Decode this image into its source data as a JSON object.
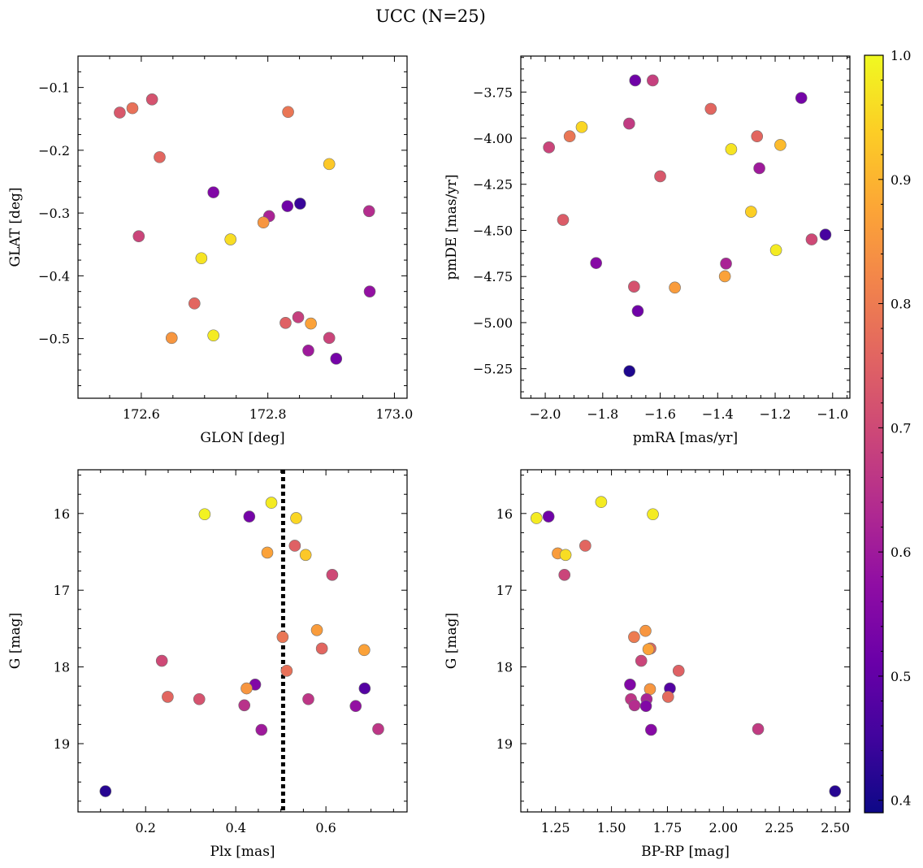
{
  "figure": {
    "title": "UCC (N=25)"
  },
  "colorbar": {
    "cmap": "plasma",
    "range": [
      0.39,
      1.0
    ],
    "ticks": [
      "0.4",
      "0.5",
      "0.6",
      "0.7",
      "0.8",
      "0.9",
      "1.0"
    ]
  },
  "chart_data": [
    {
      "type": "scatter",
      "xlabel": "GLON [deg]",
      "ylabel": "GLAT [deg]",
      "xlim": [
        172.5,
        173.02
      ],
      "ylim": [
        -0.595,
        -0.05
      ],
      "xticks": [
        "172.6",
        "172.8",
        "173.0"
      ],
      "yticks": [
        "−0.1",
        "−0.2",
        "−0.3",
        "−0.4",
        "−0.5"
      ],
      "x": [
        172.566,
        172.586,
        172.617,
        172.629,
        172.832,
        172.897,
        172.714,
        172.831,
        172.851,
        172.96,
        172.596,
        172.802,
        172.793,
        172.741,
        172.695,
        172.684,
        172.961,
        172.648,
        172.714,
        172.828,
        172.848,
        172.868,
        172.897,
        172.864,
        172.908
      ],
      "y": [
        -0.14,
        -0.133,
        -0.119,
        -0.211,
        -0.139,
        -0.222,
        -0.267,
        -0.289,
        -0.285,
        -0.297,
        -0.337,
        -0.305,
        -0.315,
        -0.342,
        -0.372,
        -0.444,
        -0.425,
        -0.499,
        -0.495,
        -0.475,
        -0.466,
        -0.476,
        -0.499,
        -0.519,
        -0.532
      ],
      "c": [
        0.73,
        0.78,
        0.72,
        0.76,
        0.79,
        0.93,
        0.55,
        0.52,
        0.44,
        0.64,
        0.69,
        0.62,
        0.85,
        0.96,
        0.97,
        0.76,
        0.58,
        0.85,
        0.98,
        0.75,
        0.68,
        0.87,
        0.69,
        0.6,
        0.53
      ]
    },
    {
      "type": "scatter",
      "xlabel": "pmRA [mas/yr]",
      "ylabel": "pmDE [mas/yr]",
      "xlim": [
        -2.085,
        -0.94
      ],
      "ylim": [
        -5.41,
        -3.555
      ],
      "xticks": [
        "−2.0",
        "−1.8",
        "−1.6",
        "−1.4",
        "−1.2",
        "−1.0"
      ],
      "yticks": [
        "−3.75",
        "−4.00",
        "−4.25",
        "−4.50",
        "−4.75",
        "−5.00",
        "−5.25"
      ],
      "x": [
        -1.687,
        -1.626,
        -1.109,
        -1.424,
        -1.708,
        -1.873,
        -1.987,
        -1.915,
        -1.263,
        -1.353,
        -1.182,
        -1.255,
        -1.6,
        -1.284,
        -1.938,
        -1.073,
        -1.025,
        -1.197,
        -1.823,
        -1.371,
        -1.375,
        -1.691,
        -1.549,
        -1.678,
        -1.707
      ],
      "y": [
        -3.687,
        -3.687,
        -3.782,
        -3.841,
        -3.921,
        -3.94,
        -4.05,
        -3.99,
        -3.99,
        -4.06,
        -4.037,
        -4.163,
        -4.207,
        -4.399,
        -4.443,
        -4.549,
        -4.523,
        -4.607,
        -4.677,
        -4.68,
        -4.749,
        -4.805,
        -4.81,
        -4.937,
        -5.263
      ],
      "c": [
        0.52,
        0.68,
        0.53,
        0.76,
        0.67,
        0.95,
        0.69,
        0.79,
        0.76,
        0.97,
        0.91,
        0.6,
        0.73,
        0.94,
        0.74,
        0.7,
        0.46,
        0.98,
        0.56,
        0.62,
        0.87,
        0.72,
        0.86,
        0.52,
        0.41
      ]
    },
    {
      "type": "scatter",
      "xlabel": "Plx [mas]",
      "ylabel": "G [mag]",
      "xlim": [
        0.05,
        0.78
      ],
      "ylim": [
        19.89,
        15.43
      ],
      "xticks": [
        "0.2",
        "0.4",
        "0.6"
      ],
      "yticks": [
        "16",
        "17",
        "18",
        "19"
      ],
      "vline": {
        "x": 0.505,
        "style": "dotted"
      },
      "x": [
        0.331,
        0.479,
        0.43,
        0.534,
        0.531,
        0.47,
        0.555,
        0.614,
        0.58,
        0.591,
        0.685,
        0.504,
        0.236,
        0.513,
        0.443,
        0.424,
        0.686,
        0.249,
        0.319,
        0.561,
        0.419,
        0.666,
        0.457,
        0.716,
        0.111
      ],
      "y": [
        16.01,
        15.86,
        16.04,
        16.06,
        16.42,
        16.51,
        16.54,
        16.8,
        17.52,
        17.76,
        17.78,
        17.61,
        17.92,
        18.05,
        18.23,
        18.28,
        18.28,
        18.39,
        18.42,
        18.42,
        18.5,
        18.51,
        18.82,
        18.81,
        19.62
      ],
      "c": [
        0.99,
        0.98,
        0.53,
        0.95,
        0.75,
        0.87,
        0.93,
        0.7,
        0.86,
        0.76,
        0.87,
        0.79,
        0.7,
        0.78,
        0.55,
        0.85,
        0.48,
        0.76,
        0.72,
        0.66,
        0.65,
        0.58,
        0.6,
        0.66,
        0.42
      ]
    },
    {
      "type": "scatter",
      "xlabel": "BP-RP [mag]",
      "ylabel": "G [mag]",
      "xlim": [
        1.095,
        2.565
      ],
      "ylim": [
        19.89,
        15.43
      ],
      "xticks": [
        "1.25",
        "1.50",
        "1.75",
        "2.00",
        "2.25",
        "2.50"
      ],
      "yticks": [
        "16",
        "17",
        "18",
        "19"
      ],
      "x": [
        1.165,
        1.219,
        1.454,
        1.685,
        1.26,
        1.295,
        1.383,
        1.29,
        1.652,
        1.601,
        1.674,
        1.665,
        1.633,
        1.8,
        1.583,
        1.761,
        1.672,
        1.587,
        1.603,
        1.657,
        1.654,
        1.753,
        1.677,
        2.155,
        2.499
      ],
      "y": [
        16.06,
        16.04,
        15.85,
        16.01,
        16.52,
        16.54,
        16.42,
        16.8,
        17.53,
        17.61,
        17.76,
        17.77,
        17.92,
        18.05,
        18.23,
        18.28,
        18.29,
        18.42,
        18.5,
        18.42,
        18.51,
        18.39,
        18.82,
        18.81,
        19.62
      ],
      "c": [
        0.98,
        0.52,
        0.98,
        0.98,
        0.86,
        0.96,
        0.76,
        0.69,
        0.85,
        0.8,
        0.76,
        0.87,
        0.69,
        0.75,
        0.55,
        0.48,
        0.85,
        0.66,
        0.64,
        0.62,
        0.55,
        0.77,
        0.56,
        0.67,
        0.42
      ]
    }
  ]
}
